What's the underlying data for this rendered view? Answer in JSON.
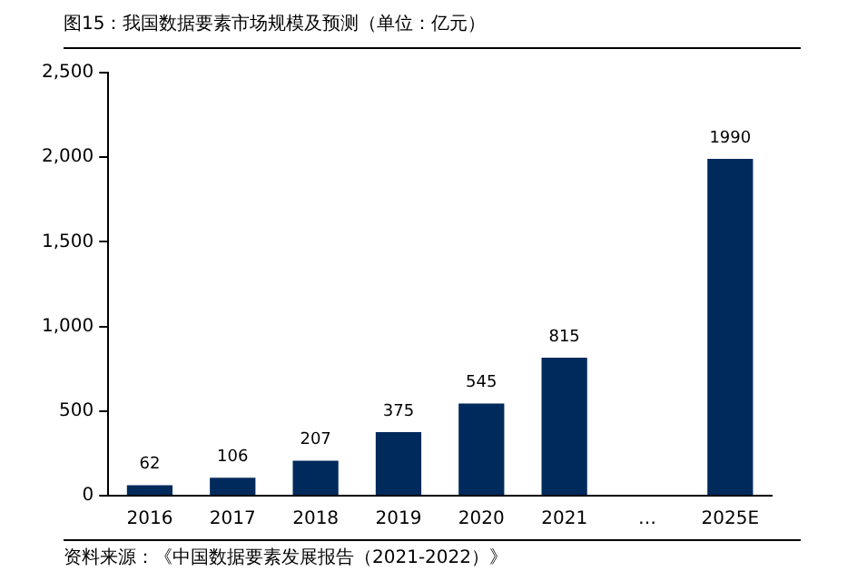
{
  "chart_data": {
    "type": "bar",
    "title": "图15：我国数据要素市场规模及预测（单位：亿元）",
    "categories": [
      "2016",
      "2017",
      "2018",
      "2019",
      "2020",
      "2021",
      "…",
      "2025E"
    ],
    "values": [
      62,
      106,
      207,
      375,
      545,
      815,
      null,
      1990
    ],
    "color": "#002a5c",
    "ylim": [
      0,
      2500
    ],
    "yticks": [
      {
        "value": 0,
        "label": "0"
      },
      {
        "value": 500,
        "label": "500"
      },
      {
        "value": 1000,
        "label": "1,000"
      },
      {
        "value": 1500,
        "label": "1,500"
      },
      {
        "value": 2000,
        "label": "2,000"
      },
      {
        "value": 2500,
        "label": "2,500"
      }
    ],
    "grid": false,
    "legend": false,
    "data_labels": true,
    "annotations": [
      "资料来源：《中国数据要素发展报告（2021-2022）》"
    ]
  }
}
